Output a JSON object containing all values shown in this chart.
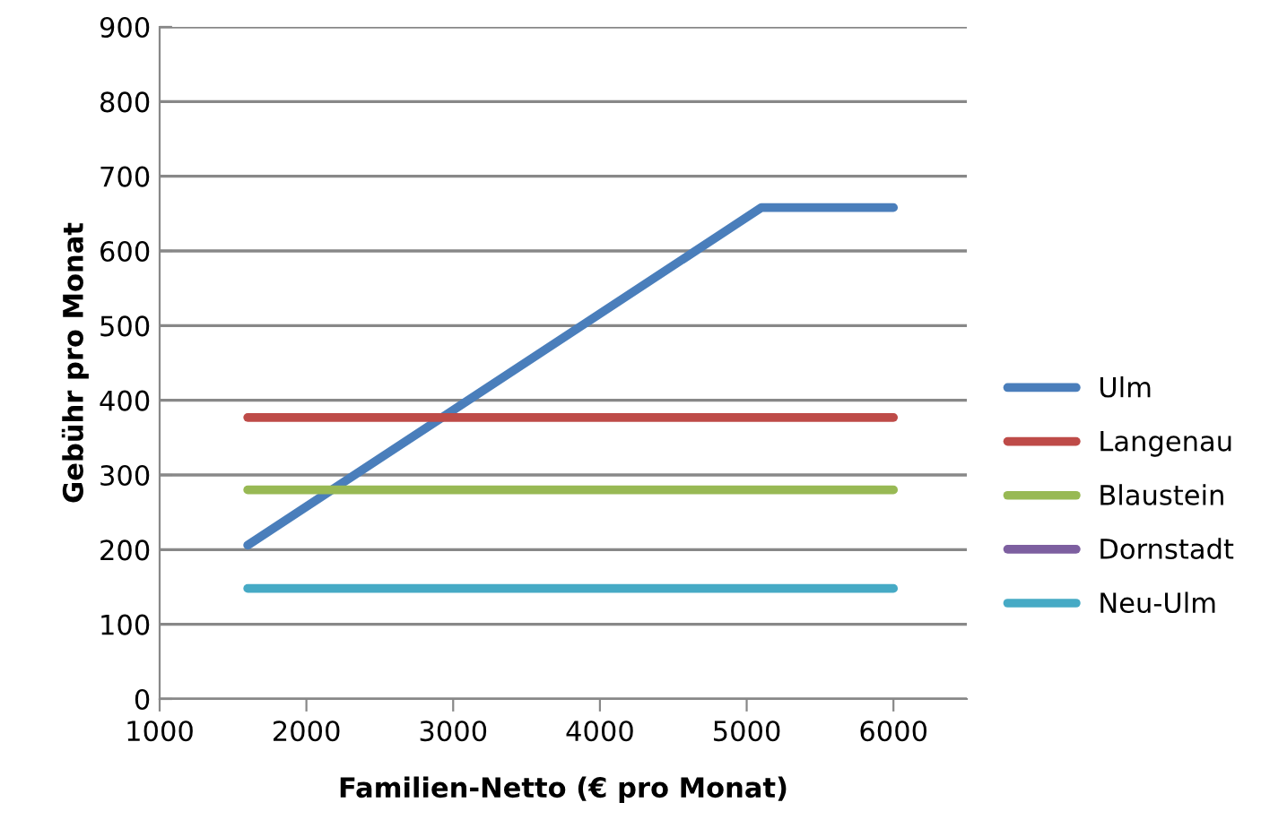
{
  "chart_data": {
    "type": "line",
    "xlabel": "Familien-Netto (€ pro Monat)",
    "ylabel": "Gebühr pro Monat",
    "xlim": [
      1000,
      6500
    ],
    "xticks": [
      1000,
      2000,
      3000,
      4000,
      5000,
      6000
    ],
    "ylim": [
      0,
      900
    ],
    "yticks": [
      0,
      100,
      200,
      300,
      400,
      500,
      600,
      700,
      800,
      900
    ],
    "grid": "y",
    "legend": "right",
    "marker": "none",
    "line_style": "solid",
    "series": [
      {
        "name": "Ulm",
        "color": "#4a7ebb",
        "x": [
          1600,
          5100,
          6000
        ],
        "values": [
          206,
          658,
          658
        ]
      },
      {
        "name": "Langenau",
        "color": "#be4b48",
        "x": [
          1600,
          6000
        ],
        "values": [
          377,
          377
        ]
      },
      {
        "name": "Blaustein",
        "color": "#98b954",
        "x": [
          1600,
          6000
        ],
        "values": [
          280,
          280
        ]
      },
      {
        "name": "Dornstadt",
        "color": "#7d5fa0"
      },
      {
        "name": "Neu-Ulm",
        "color": "#46aac5",
        "x": [
          1600,
          6000
        ],
        "values": [
          148,
          148
        ]
      }
    ]
  }
}
